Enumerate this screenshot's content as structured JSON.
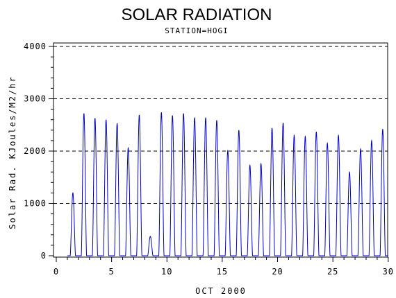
{
  "chart_data": {
    "type": "line",
    "title": "SOLAR RADIATION",
    "subtitle": "STATION=HOGI",
    "xlabel": "OCT 2000",
    "ylabel": "Solar Rad. KJoules/M2/hr",
    "xlim": [
      0,
      30.2
    ],
    "ylim": [
      0,
      4050
    ],
    "x_ticks": [
      0,
      5,
      10,
      15,
      20,
      25,
      30
    ],
    "y_ticks": [
      0,
      1000,
      2000,
      3000,
      4000
    ],
    "grid": "horizontal-dashed",
    "line_color": "#0000cc",
    "daily_peaks": [
      {
        "day": 1,
        "peak": 1200
      },
      {
        "day": 2,
        "peak": 2720
      },
      {
        "day": 3,
        "peak": 2630
      },
      {
        "day": 4,
        "peak": 2600
      },
      {
        "day": 5,
        "peak": 2530
      },
      {
        "day": 6,
        "peak": 2060
      },
      {
        "day": 7,
        "peak": 2690
      },
      {
        "day": 8,
        "peak": 370
      },
      {
        "day": 9,
        "peak": 2740
      },
      {
        "day": 10,
        "peak": 2680
      },
      {
        "day": 11,
        "peak": 2720
      },
      {
        "day": 12,
        "peak": 2640
      },
      {
        "day": 13,
        "peak": 2640
      },
      {
        "day": 14,
        "peak": 2590
      },
      {
        "day": 15,
        "peak": 2010
      },
      {
        "day": 16,
        "peak": 2400
      },
      {
        "day": 17,
        "peak": 1730
      },
      {
        "day": 18,
        "peak": 1760
      },
      {
        "day": 19,
        "peak": 2440
      },
      {
        "day": 20,
        "peak": 2540
      },
      {
        "day": 21,
        "peak": 2300
      },
      {
        "day": 22,
        "peak": 2280
      },
      {
        "day": 23,
        "peak": 2370
      },
      {
        "day": 24,
        "peak": 2150
      },
      {
        "day": 25,
        "peak": 2300
      },
      {
        "day": 26,
        "peak": 1600
      },
      {
        "day": 27,
        "peak": 2040
      },
      {
        "day": 28,
        "peak": 2200
      },
      {
        "day": 29,
        "peak": 2420
      }
    ]
  }
}
